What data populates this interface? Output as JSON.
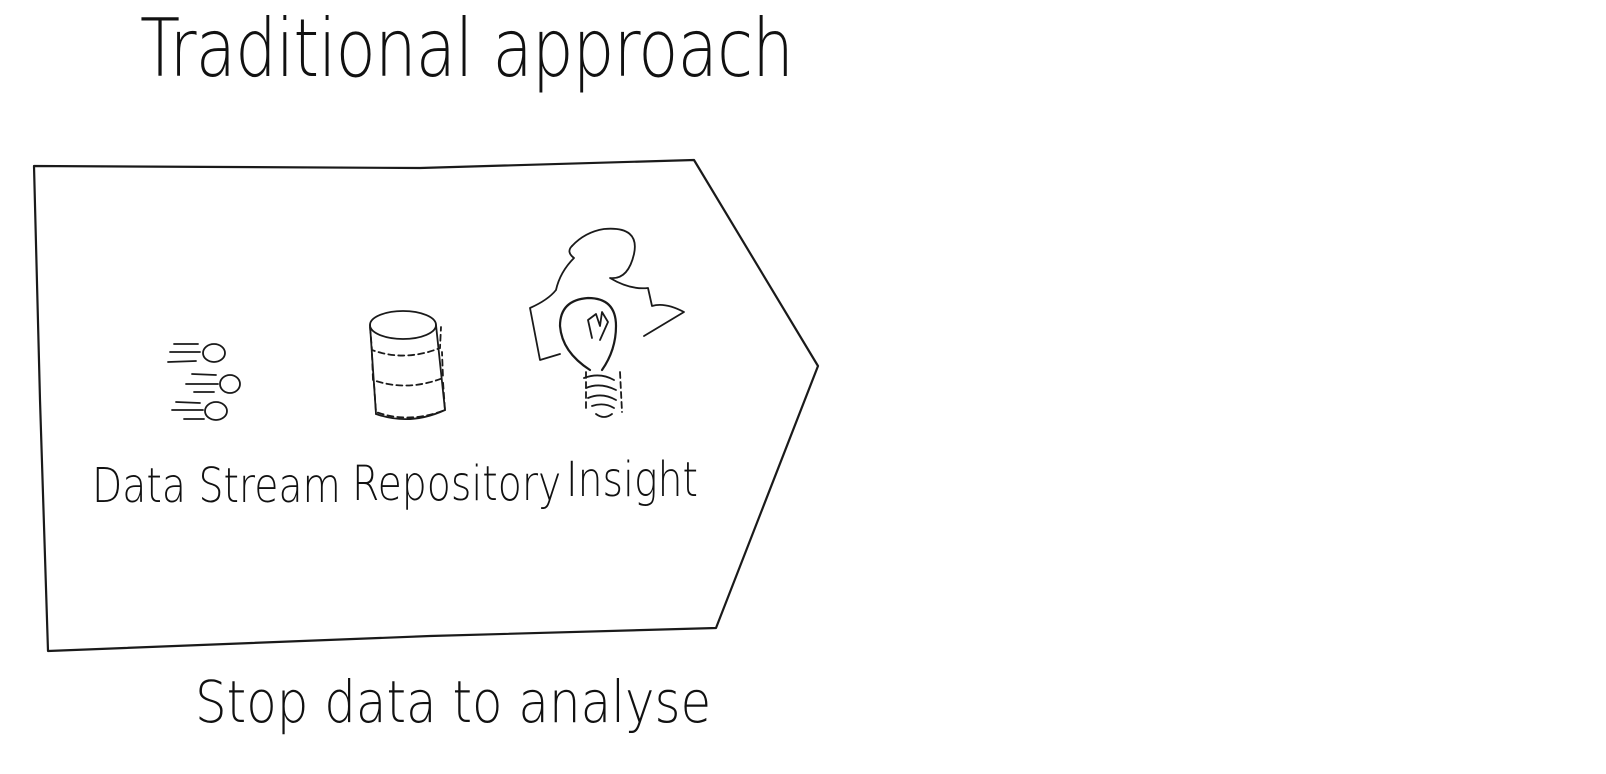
{
  "title": "Traditional approach",
  "process": {
    "steps": [
      {
        "label": "Data Stream",
        "icon": "data-stream-icon"
      },
      {
        "label": "Repository",
        "icon": "database-icon"
      },
      {
        "label": "Insight",
        "icon": "lightbulb-icon"
      }
    ]
  },
  "caption": "Stop data to analyse",
  "colors": {
    "ink": "#1a1a1a",
    "background": "#ffffff"
  }
}
